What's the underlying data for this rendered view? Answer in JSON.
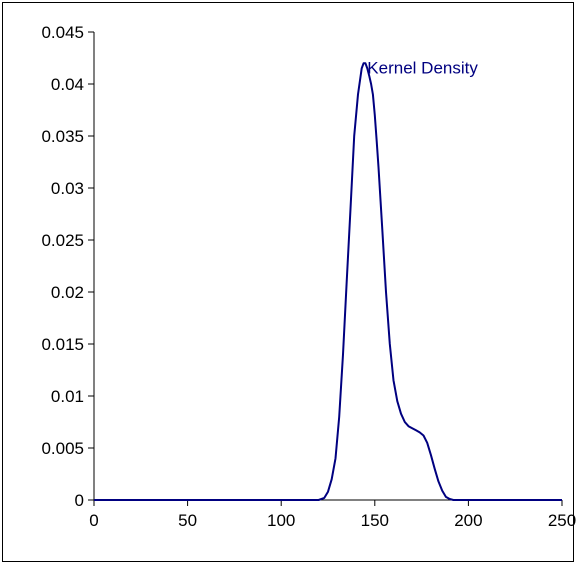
{
  "chart_data": {
    "type": "line",
    "title": "",
    "xlabel": "",
    "ylabel": "",
    "xlim": [
      0,
      250
    ],
    "ylim": [
      0,
      0.045
    ],
    "x_ticks": [
      0,
      50,
      100,
      150,
      200,
      250
    ],
    "y_ticks": [
      0,
      0.005,
      0.01,
      0.015,
      0.02,
      0.025,
      0.03,
      0.035,
      0.04,
      0.045
    ],
    "grid": false,
    "legend": "none",
    "series": [
      {
        "name": "Kernel Density",
        "color": "#000080",
        "x": [
          0,
          100,
          120,
          123,
          125,
          127,
          129,
          131,
          133,
          135,
          137,
          139,
          141,
          143,
          144,
          145,
          146,
          147,
          148,
          149,
          150,
          151,
          152,
          154,
          156,
          158,
          160,
          162,
          164,
          166,
          168,
          170,
          172,
          174,
          176,
          178,
          180,
          182,
          184,
          186,
          188,
          190,
          192,
          200,
          250
        ],
        "y": [
          0,
          0,
          0,
          0.0002,
          0.0008,
          0.002,
          0.004,
          0.008,
          0.014,
          0.021,
          0.028,
          0.035,
          0.039,
          0.0415,
          0.042,
          0.042,
          0.0415,
          0.0408,
          0.04,
          0.039,
          0.037,
          0.0345,
          0.032,
          0.026,
          0.02,
          0.015,
          0.0115,
          0.0095,
          0.0083,
          0.0075,
          0.0071,
          0.0069,
          0.0067,
          0.0065,
          0.0062,
          0.0055,
          0.0043,
          0.003,
          0.0018,
          0.0009,
          0.0003,
          0.0001,
          0,
          0,
          0
        ]
      }
    ],
    "annotations": [
      {
        "text": "Kernel Density",
        "x": 146,
        "y": 0.041,
        "color": "#000080"
      }
    ]
  }
}
